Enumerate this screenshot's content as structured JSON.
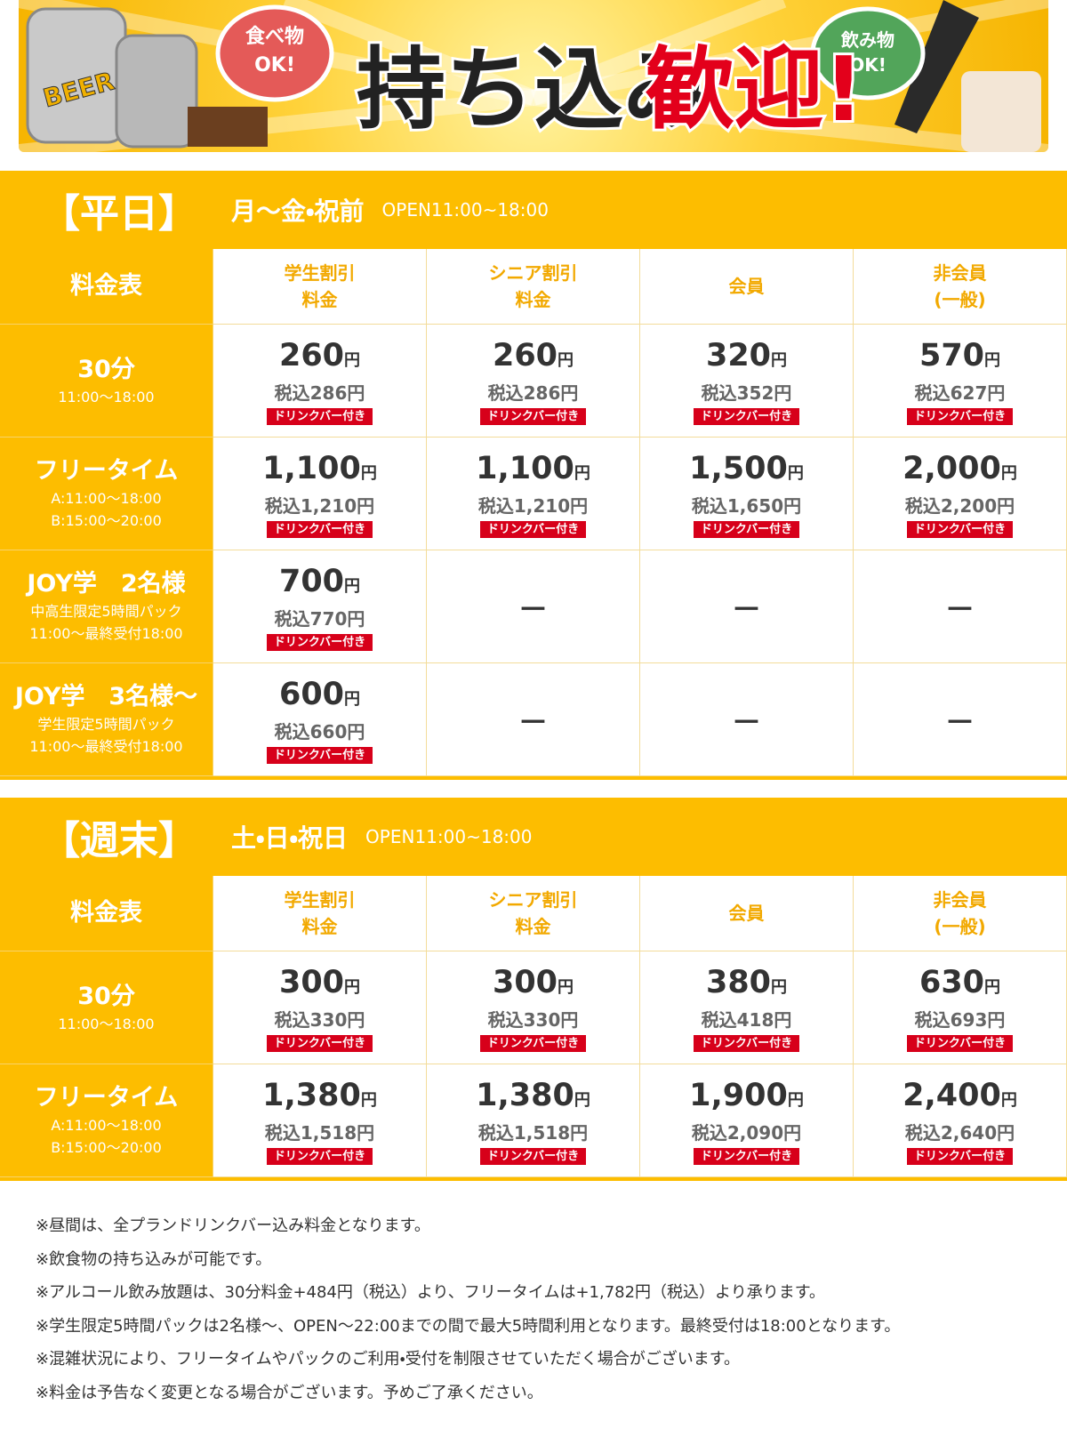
{
  "banner": {
    "beer": "BEER",
    "food": [
      "食べ物",
      "OK!"
    ],
    "title_black": "持ち込み",
    "title_red": "歓迎!",
    "drink": [
      "飲み物",
      "OK!"
    ]
  },
  "sections": [
    {
      "label": "【平日】",
      "days": "月～金・祝前",
      "hours": "OPEN11:00~18:00",
      "header": [
        [
          "料金表"
        ],
        [
          "学生割引",
          "料金"
        ],
        [
          "シニア割引",
          "料金"
        ],
        [
          "会員"
        ],
        [
          "非会員",
          "(一般)"
        ]
      ],
      "rows": [
        {
          "name": "30分",
          "notes": [
            "11:00～18:00"
          ],
          "cells": [
            {
              "price": "260",
              "yen": "円",
              "tax": "税込286円",
              "badge": "ドリンクバー付き"
            },
            {
              "price": "260",
              "yen": "円",
              "tax": "税込286円",
              "badge": "ドリンクバー付き"
            },
            {
              "price": "320",
              "yen": "円",
              "tax": "税込352円",
              "badge": "ドリンクバー付き"
            },
            {
              "price": "570",
              "yen": "円",
              "tax": "税込627円",
              "badge": "ドリンクバー付き"
            }
          ]
        },
        {
          "name": "フリータイム",
          "notes": [
            "A:11:00～18:00",
            "B:15:00～20:00"
          ],
          "cells": [
            {
              "price": "1,100",
              "yen": "円",
              "tax": "税込1,210円",
              "badge": "ドリンクバー付き"
            },
            {
              "price": "1,100",
              "yen": "円",
              "tax": "税込1,210円",
              "badge": "ドリンクバー付き"
            },
            {
              "price": "1,500",
              "yen": "円",
              "tax": "税込1,650円",
              "badge": "ドリンクバー付き"
            },
            {
              "price": "2,000",
              "yen": "円",
              "tax": "税込2,200円",
              "badge": "ドリンクバー付き"
            }
          ]
        },
        {
          "name": "JOY学　2名様",
          "notes": [
            "中高生限定5時間パック",
            "11:00～最終受付18:00"
          ],
          "cells": [
            {
              "price": "700",
              "yen": "円",
              "tax": "税込770円",
              "badge": "ドリンクバー付き"
            },
            {
              "dash": "－"
            },
            {
              "dash": "－"
            },
            {
              "dash": "－"
            }
          ]
        },
        {
          "name": "JOY学　3名様～",
          "notes": [
            "学生限定5時間パック",
            "11:00～最終受付18:00"
          ],
          "cells": [
            {
              "price": "600",
              "yen": "円",
              "tax": "税込660円",
              "badge": "ドリンクバー付き"
            },
            {
              "dash": "－"
            },
            {
              "dash": "－"
            },
            {
              "dash": "－"
            }
          ]
        }
      ]
    },
    {
      "label": "【週末】",
      "days": "土・日・祝日",
      "hours": "OPEN11:00~18:00",
      "header": [
        [
          "料金表"
        ],
        [
          "学生割引",
          "料金"
        ],
        [
          "シニア割引",
          "料金"
        ],
        [
          "会員"
        ],
        [
          "非会員",
          "(一般)"
        ]
      ],
      "rows": [
        {
          "name": "30分",
          "notes": [
            "11:00～18:00"
          ],
          "cells": [
            {
              "price": "300",
              "yen": "円",
              "tax": "税込330円",
              "badge": "ドリンクバー付き"
            },
            {
              "price": "300",
              "yen": "円",
              "tax": "税込330円",
              "badge": "ドリンクバー付き"
            },
            {
              "price": "380",
              "yen": "円",
              "tax": "税込418円",
              "badge": "ドリンクバー付き"
            },
            {
              "price": "630",
              "yen": "円",
              "tax": "税込693円",
              "badge": "ドリンクバー付き"
            }
          ]
        },
        {
          "name": "フリータイム",
          "notes": [
            "A:11:00～18:00",
            "B:15:00～20:00"
          ],
          "cells": [
            {
              "price": "1,380",
              "yen": "円",
              "tax": "税込1,518円",
              "badge": "ドリンクバー付き"
            },
            {
              "price": "1,380",
              "yen": "円",
              "tax": "税込1,518円",
              "badge": "ドリンクバー付き"
            },
            {
              "price": "1,900",
              "yen": "円",
              "tax": "税込2,090円",
              "badge": "ドリンクバー付き"
            },
            {
              "price": "2,400",
              "yen": "円",
              "tax": "税込2,640円",
              "badge": "ドリンクバー付き"
            }
          ]
        }
      ]
    }
  ],
  "notes": [
    "※昼間は、全プランドリンクバー込み料金となります。",
    "※飲食物の持ち込みが可能です。",
    "※アルコール飲み放題は、30分料金+484円（税込）より、フリータイムは+1,782円（税込）より承ります。",
    "※学生限定5時間パックは2名様～、OPEN～22:00までの間で最大5時間利用となります。最終受付は18:00となります。",
    "※混雑状況により、フリータイムやパックのご利用・受付を制限させていただく場合がございます。",
    "※料金は予告なく変更となる場合がございます。予めご了承ください。"
  ]
}
